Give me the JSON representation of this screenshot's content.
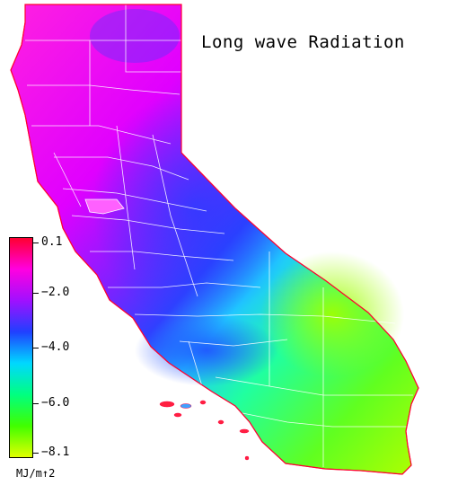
{
  "title": "Long wave Radiation",
  "legend": {
    "ticks": [
      "0.1",
      "−2.0",
      "−4.0",
      "−6.0",
      "−8.1"
    ],
    "unit": "MJ/m↑2",
    "colors": [
      "#ff0030",
      "#ff00e0",
      "#a010ff",
      "#2040ff",
      "#00d8ff",
      "#00ff80",
      "#40ff00",
      "#e0ff00"
    ]
  }
}
